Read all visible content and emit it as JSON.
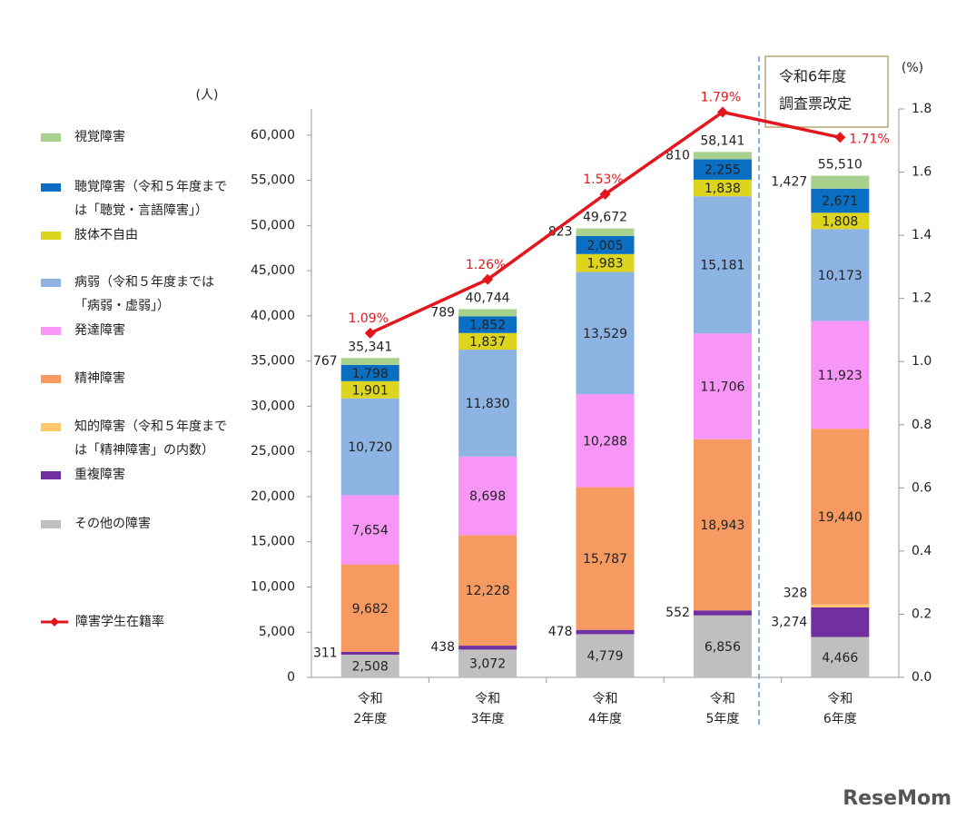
{
  "chart_data": {
    "type": "stacked-bar-line",
    "y_label": "(人)",
    "y2_label": "(%)",
    "categories": [
      "令和\n2年度",
      "令和\n3年度",
      "令和\n4年度",
      "令和\n5年度",
      "令和\n6年度"
    ],
    "ylim": [
      0,
      62900
    ],
    "yticks": [
      0,
      {
        "value": 5000,
        "label": "5,000"
      },
      {
        "value": 10000,
        "label": "10,000"
      },
      {
        "value": 15000,
        "label": "15,000"
      },
      {
        "value": 20000,
        "label": "20,000"
      },
      {
        "value": 25000,
        "label": "25,000"
      },
      {
        "value": 30000,
        "label": "30,000"
      },
      {
        "value": 35000,
        "label": "35,000"
      },
      {
        "value": 40000,
        "label": "40,000"
      },
      {
        "value": 45000,
        "label": "45,000"
      },
      {
        "value": 50000,
        "label": "50,000"
      },
      {
        "value": 55000,
        "label": "55,000"
      },
      {
        "value": 60000,
        "label": "60,000"
      }
    ],
    "y2lim": [
      0,
      1.8
    ],
    "y2ticks": [
      {
        "value": 0,
        "label": "0.0"
      },
      {
        "value": 0.2,
        "label": "0.2"
      },
      {
        "value": 0.4,
        "label": "0.4"
      },
      {
        "value": 0.6,
        "label": "0.6"
      },
      {
        "value": 0.8,
        "label": "0.8"
      },
      {
        "value": 1,
        "label": "1.0"
      },
      {
        "value": 1.2,
        "label": "1.2"
      },
      {
        "value": 1.4,
        "label": "1.4"
      },
      {
        "value": 1.6,
        "label": "1.6"
      },
      {
        "value": 1.8,
        "label": "1.8"
      }
    ],
    "series": [
      {
        "name": "その他の障害",
        "color": "#bfbfbf",
        "values": [
          2508,
          3072,
          4779,
          6856,
          4466
        ],
        "value_labels": [
          "2,508",
          "3,072",
          "4,779",
          "6,856",
          "4,466"
        ]
      },
      {
        "name": "重複障害",
        "color": "#7030a0",
        "values": [
          311,
          438,
          478,
          552,
          3274
        ],
        "value_labels": [
          "311",
          "438",
          "478",
          "552",
          "3,274"
        ]
      },
      {
        "name": "知的障害（令和５年度までは「精神障害」の内数）",
        "color": "#ffc76b",
        "values": [
          null,
          null,
          null,
          null,
          328
        ],
        "value_labels": [
          null,
          null,
          null,
          null,
          "328"
        ]
      },
      {
        "name": "精神障害",
        "color": "#f79a62",
        "values": [
          9682,
          12228,
          15787,
          18943,
          19440
        ],
        "value_labels": [
          "9,682",
          "12,228",
          "15,787",
          "18,943",
          "19,440"
        ]
      },
      {
        "name": "発達障害",
        "color": "#f896f8",
        "values": [
          7654,
          8698,
          10288,
          11706,
          11923
        ],
        "value_labels": [
          "7,654",
          "8,698",
          "10,288",
          "11,706",
          "11,923"
        ]
      },
      {
        "name": "病弱（令和５年度までは「病弱・虚弱」）",
        "color": "#8db3e2",
        "values": [
          10720,
          11830,
          13529,
          15181,
          10173
        ],
        "value_labels": [
          "10,720",
          "11,830",
          "13,529",
          "15,181",
          "10,173"
        ]
      },
      {
        "name": "肢体不自由",
        "color": "#dcd41e",
        "values": [
          1901,
          1837,
          1983,
          1838,
          1808
        ],
        "value_labels": [
          "1,901",
          "1,837",
          "1,983",
          "1,838",
          "1,808"
        ]
      },
      {
        "name": "聴覚障害（令和５年度までは「聴覚・言語障害」）",
        "color": "#0a6fc2",
        "values": [
          1798,
          1852,
          2005,
          2255,
          2671
        ],
        "value_labels": [
          "1,798",
          "1,852",
          "2,005",
          "2,255",
          "2,671"
        ]
      },
      {
        "name": "視覚障害",
        "color": "#a9d18e",
        "values": [
          767,
          789,
          823,
          810,
          1427
        ],
        "value_labels": [
          "767",
          "789",
          "823",
          "810",
          "1,427"
        ]
      },
      {
        "name": "障害学生在籍率",
        "type": "line",
        "axis": "y2",
        "color": "#e3161d",
        "values": [
          1.09,
          1.26,
          1.53,
          1.79,
          1.71
        ],
        "value_labels": [
          "1.09%",
          "1.26%",
          "1.53%",
          "1.79%",
          "1.71%"
        ]
      }
    ],
    "totals": [
      35341,
      40744,
      49672,
      58141,
      55510
    ],
    "totals_labels": [
      "35,341",
      "40,744",
      "49,672",
      "58,141",
      "55,510"
    ],
    "annotation": [
      "令和6年度",
      "調査票改定"
    ],
    "watermark": "ReseMom"
  }
}
